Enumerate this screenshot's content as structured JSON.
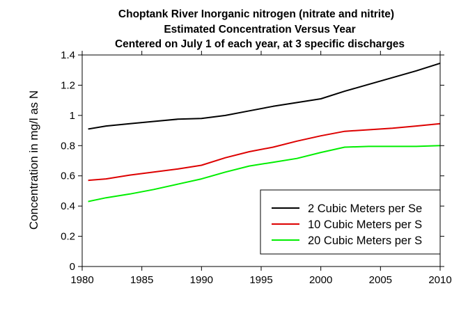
{
  "chart_data": {
    "type": "line",
    "title_lines": [
      "Choptank River    Inorganic nitrogen (nitrate and nitrite)",
      "Estimated Concentration Versus Year",
      "Centered on July 1 of each year, at 3 specific discharges"
    ],
    "xlabel": "",
    "ylabel": "Concentration in mg/l as N",
    "xlim": [
      1980,
      2010
    ],
    "ylim": [
      0,
      1.4
    ],
    "x_ticks": [
      "1980",
      "1985",
      "1990",
      "1995",
      "2000",
      "2005",
      "2010"
    ],
    "y_ticks": [
      "0",
      "0.2",
      "0.4",
      "0.6",
      "0.8",
      "1",
      "1.2",
      "1.4"
    ],
    "grid": false,
    "legend_position": "bottom-right",
    "x": [
      1980.5,
      1982,
      1984,
      1986,
      1988,
      1990,
      1992,
      1994,
      1996,
      1998,
      2000,
      2002,
      2004,
      2006,
      2008,
      2010
    ],
    "series": [
      {
        "name": "2 Cubic Meters per Se",
        "color": "#000000",
        "values": [
          0.91,
          0.93,
          0.945,
          0.96,
          0.975,
          0.98,
          1.0,
          1.03,
          1.06,
          1.085,
          1.11,
          1.16,
          1.205,
          1.25,
          1.295,
          1.345
        ]
      },
      {
        "name": "10 Cubic Meters per S",
        "color": "#dd0000",
        "values": [
          0.57,
          0.58,
          0.605,
          0.625,
          0.645,
          0.67,
          0.72,
          0.76,
          0.79,
          0.83,
          0.865,
          0.895,
          0.905,
          0.915,
          0.93,
          0.945
        ]
      },
      {
        "name": "20 Cubic Meters per S",
        "color": "#00ee00",
        "values": [
          0.43,
          0.455,
          0.48,
          0.51,
          0.545,
          0.58,
          0.625,
          0.665,
          0.69,
          0.715,
          0.755,
          0.79,
          0.795,
          0.795,
          0.795,
          0.8
        ]
      }
    ]
  }
}
